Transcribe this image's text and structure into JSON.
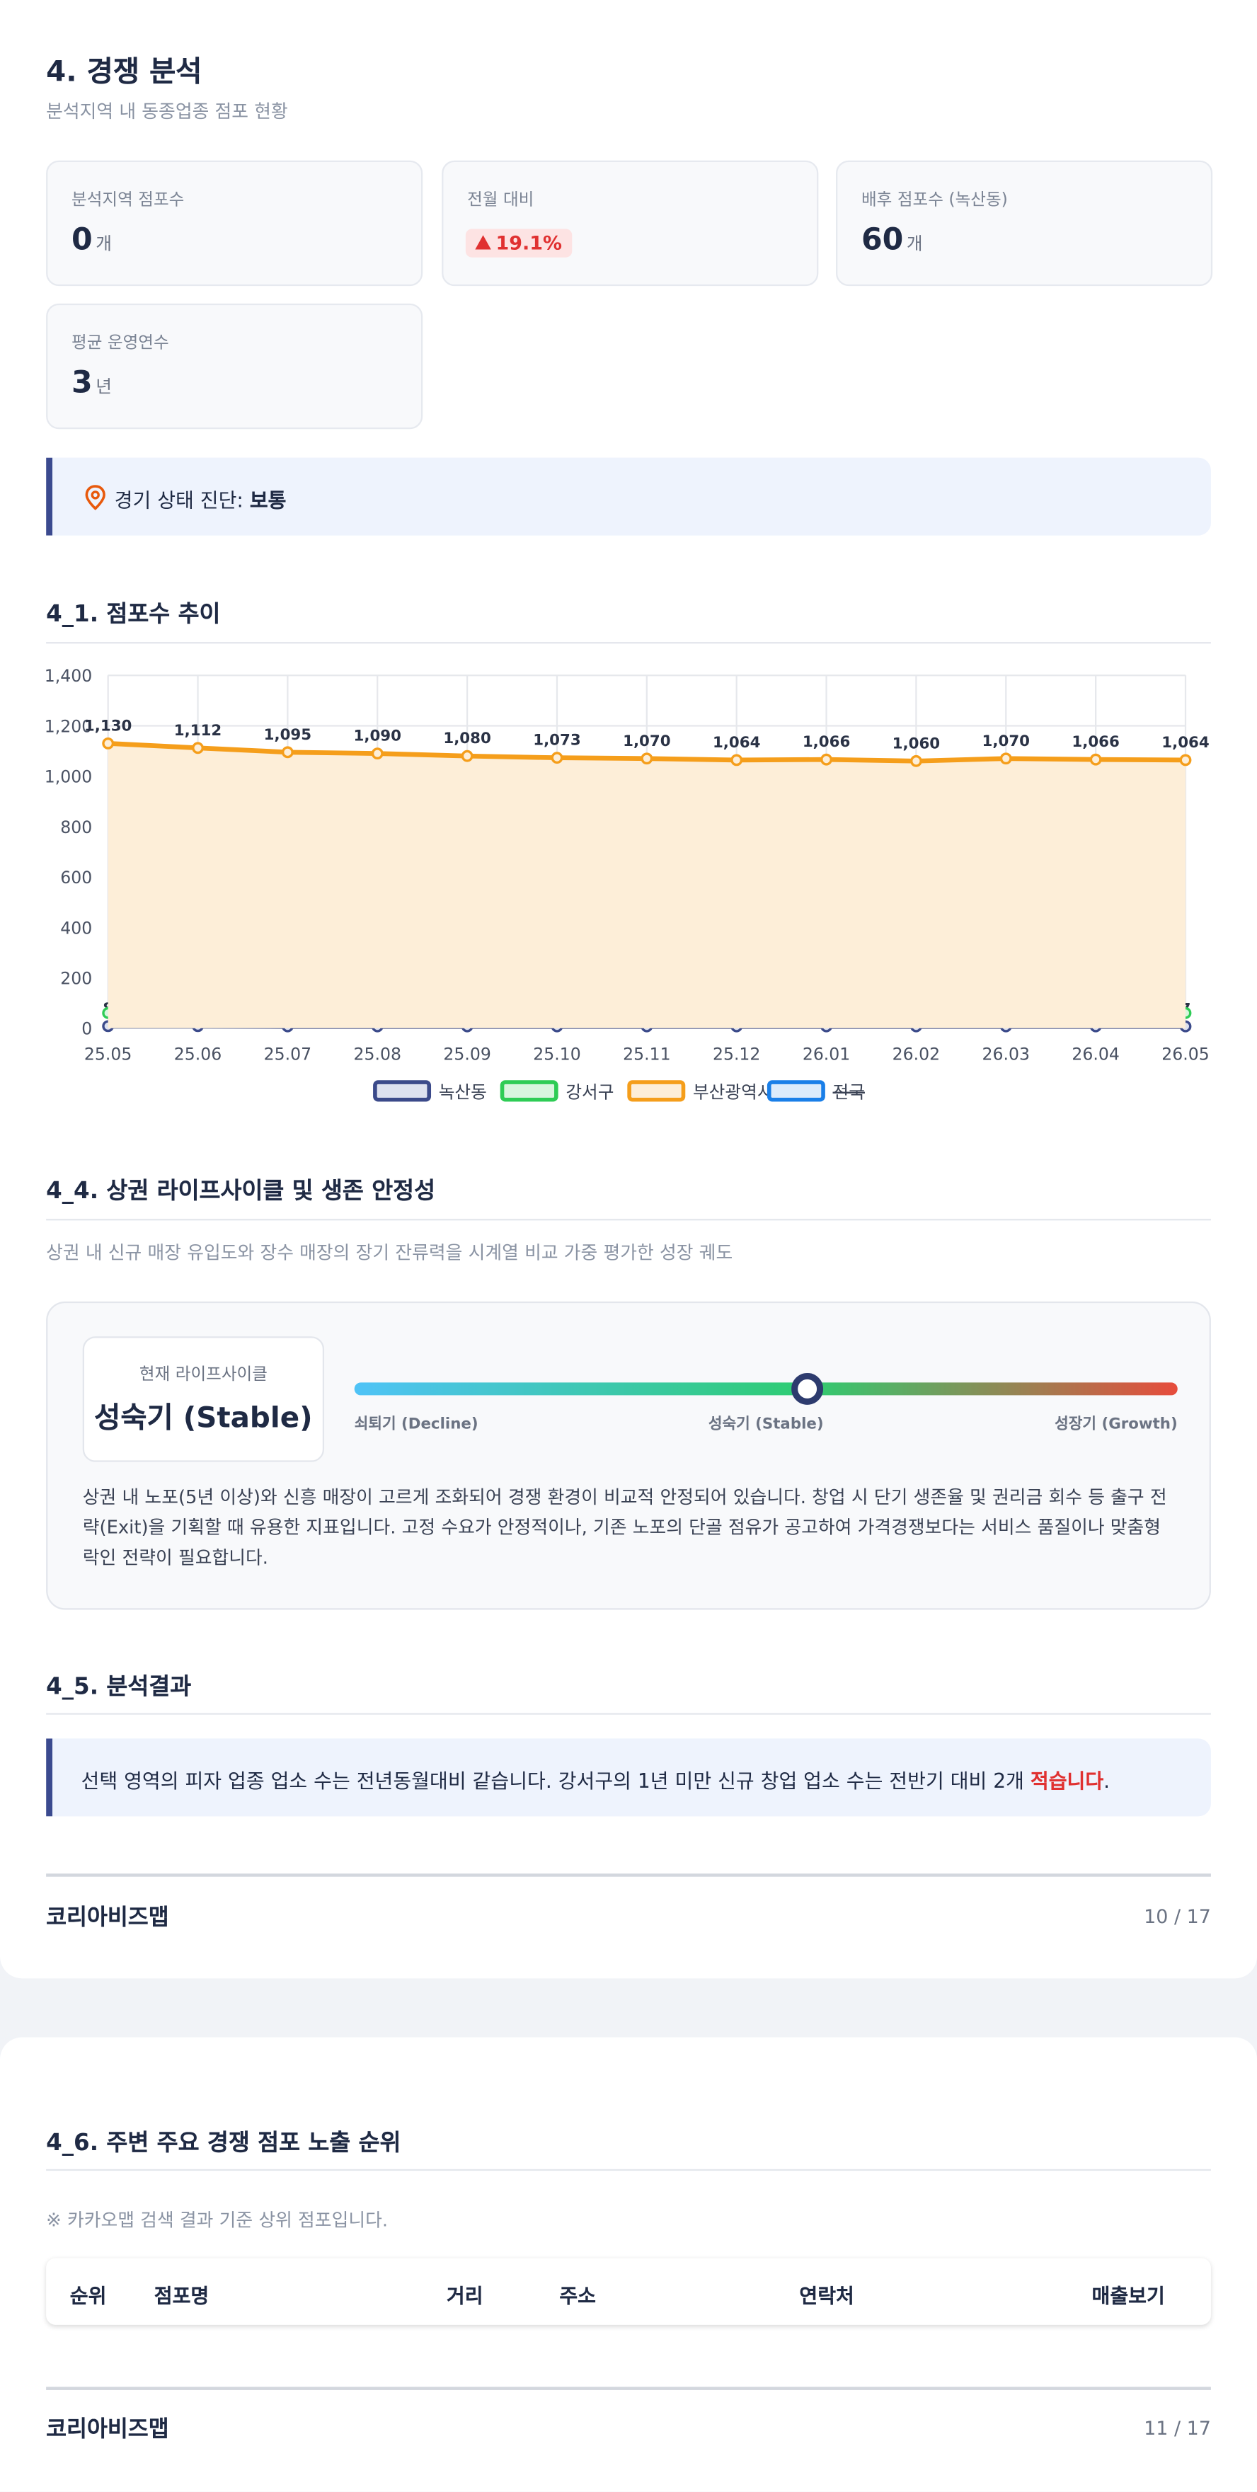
{
  "page1": {
    "title": "4. 경쟁 분석",
    "subtitle": "분석지역 내 동종업종 점포 현황",
    "cards": [
      {
        "label": "분석지역 점포수",
        "value": "0",
        "unit": "개"
      },
      {
        "label": "전월 대비",
        "value": "19.1%"
      },
      {
        "label": "배후 점포수 (녹산동)",
        "value": "60",
        "unit": "개"
      },
      {
        "label": "평균 운영연수",
        "value": "3",
        "unit": "년"
      }
    ],
    "diagnosis": {
      "label": "경기 상태 진단:",
      "value": "보통"
    },
    "chart_heading": "4_1. 점포수 추이",
    "lifecycle": {
      "heading": "4_4. 상권 라이프사이클 및 생존 안정성",
      "description": "상권 내 신규 매장 유입도와 장수 매장의 장기 잔류력을 시계열 비교 가중 평가한 성장 궤도",
      "badge_label": "현재 라이프사이클",
      "badge_value": "성숙기 (Stable)",
      "scale": [
        "쇠퇴기 (Decline)",
        "성숙기 (Stable)",
        "성장기 (Growth)"
      ],
      "text": "상권 내 노포(5년 이상)와 신흥 매장이 고르게 조화되어 경쟁 환경이 비교적 안정되어 있습니다. 창업 시 단기 생존율 및 권리금 회수 등 출구 전략(Exit)을 기획할 때 유용한 지표입니다. 고정 수요가 안정적이나, 기존 노포의 단골 점유가 공고하여 가격경쟁보다는 서비스 품질이나 맞춤형 락인 전략이 필요합니다."
    },
    "result": {
      "heading": "4_5. 분석결과",
      "text": "선택 영역의 피자 업종 업소 수는 전년동월대비 같습니다. 강서구의 1년 미만 신규 창업 업소 수는 전반기 대비 2개 ",
      "emphasis": "적습니다",
      "end": "."
    },
    "footer": {
      "brand": "코리아비즈맵",
      "page": "10 / 17"
    }
  },
  "chart_data": {
    "type": "line",
    "categories": [
      "25.05",
      "25.06",
      "25.07",
      "25.08",
      "25.09",
      "25.10",
      "25.11",
      "25.12",
      "26.01",
      "26.02",
      "26.03",
      "26.04",
      "26.05"
    ],
    "ylim": [
      0,
      1400
    ],
    "yticks": [
      0,
      200,
      400,
      600,
      800,
      {
        "value": 1000,
        "label": "1,000"
      },
      {
        "value": 1200,
        "label": "1,200"
      },
      {
        "value": 1400,
        "label": "1,400"
      }
    ],
    "grid": true,
    "series": [
      {
        "name": "녹산동",
        "color": "#3b4a8a",
        "fill": "#dde1ef",
        "data_labels": true,
        "values": [
          8,
          8,
          7,
          7,
          7,
          7,
          7,
          7,
          7,
          7,
          7,
          7,
          7
        ]
      },
      {
        "name": "강서구",
        "color": "#2ecc55",
        "fill": "#d8f5de",
        "values": [
          60,
          58,
          56,
          56,
          54,
          55,
          56,
          57,
          58,
          57,
          58,
          59,
          60
        ]
      },
      {
        "name": "부산광역시",
        "color": "#f59e1b",
        "fill": "#fdeed8",
        "area": true,
        "data_labels": true,
        "values": [
          1130,
          1112,
          1095,
          1090,
          1080,
          1073,
          1070,
          1064,
          1066,
          1060,
          1070,
          1066,
          1064
        ],
        "value_labels": [
          "1,130",
          "1,112",
          "1,095",
          "1,090",
          "1,080",
          "1,073",
          "1,070",
          "1,064",
          "1,066",
          "1,060",
          "1,070",
          "1,066",
          "1,064"
        ]
      },
      {
        "name": "전국",
        "color": "#1a7fe8",
        "fill": "#dcebfb",
        "hidden": true,
        "values": [
          null,
          null,
          null,
          null,
          null,
          null,
          null,
          null,
          null,
          null,
          null,
          null,
          null
        ]
      }
    ]
  },
  "page2": {
    "heading": "4_6. 주변 주요 경쟁 점포 노출 순위",
    "note": "※ 카카오맵 검색 결과 기준 상위 점포입니다.",
    "table": {
      "headers": [
        "순위",
        "점포명",
        "거리",
        "주소",
        "연락처",
        "매출보기"
      ]
    },
    "footer": {
      "brand": "코리아비즈맵",
      "page": "11 / 17"
    }
  }
}
